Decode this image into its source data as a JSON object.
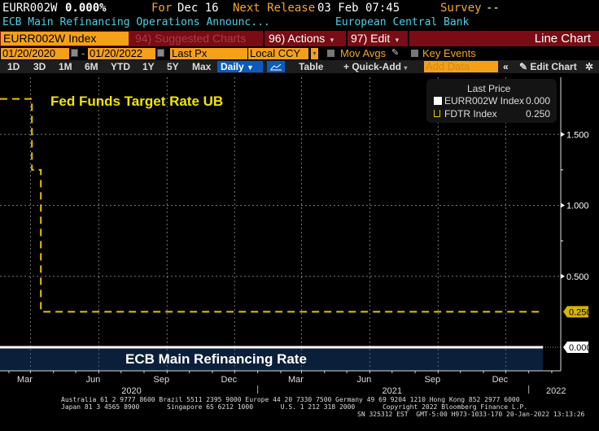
{
  "header": {
    "ticker": "EURR002W",
    "value": "0.000%",
    "for_label": "For",
    "for_date": "Dec 16",
    "next_release_label": "Next Release",
    "next_release_date": "03 Feb 07:45",
    "survey_label": "Survey",
    "survey_value": "--",
    "description": "ECB Main Refinancing Operations Announc...",
    "source": "European Central Bank"
  },
  "toolbar1": {
    "security": "EURR002W Index",
    "suggested_charts": "94) Suggested Charts",
    "actions": "96) Actions",
    "edit": "97) Edit",
    "chart_type": "Line Chart"
  },
  "toolbar2": {
    "start_date": "01/20/2020",
    "dash": "-",
    "end_date": "01/20/2022",
    "field": "Last Px",
    "currency": "Local CCY",
    "mov_avgs": "Mov Avgs",
    "key_events": "Key Events"
  },
  "toolbar3": {
    "ranges": [
      "1D",
      "3D",
      "1M",
      "6M",
      "YTD",
      "1Y",
      "5Y",
      "Max"
    ],
    "periodicity": "Daily",
    "table": "Table",
    "quick_add": "+ Quick-Add",
    "add_data_placeholder": "Add Data",
    "collapse": "«",
    "edit_chart": "Edit Chart"
  },
  "legend": {
    "title": "Last Price",
    "items": [
      {
        "name": "EURR002W Index",
        "value": "0.000",
        "color": "#ffffff"
      },
      {
        "name": "FDTR Index",
        "value": "0.250",
        "color": "#e6c200"
      }
    ]
  },
  "chart_data": {
    "type": "line",
    "title": "",
    "annotations": [
      "Fed Funds Target Rate UB",
      "ECB Main Refinancing Rate"
    ],
    "x_range": [
      "2020-01-20",
      "2022-01-20"
    ],
    "x_ticks": [
      "Mar",
      "Jun",
      "Sep",
      "Dec",
      "Mar",
      "Jun",
      "Sep",
      "Dec"
    ],
    "x_years": [
      "2020",
      "2021",
      "2022"
    ],
    "y_ticks": [
      "1.500",
      "1.000",
      "0.500"
    ],
    "ylim": [
      -0.25,
      1.9
    ],
    "grid": true,
    "legend_position": "top-right",
    "series": [
      {
        "name": "FDTR Index",
        "label": "Fed Funds Target Rate UB",
        "color": "#e6c200",
        "style": "dashed",
        "points": [
          {
            "x": "2020-01-20",
            "y": 1.75
          },
          {
            "x": "2020-03-03",
            "y": 1.75
          },
          {
            "x": "2020-03-03",
            "y": 1.25
          },
          {
            "x": "2020-03-15",
            "y": 1.25
          },
          {
            "x": "2020-03-15",
            "y": 0.25
          },
          {
            "x": "2022-01-20",
            "y": 0.25
          }
        ],
        "last": "0.250"
      },
      {
        "name": "EURR002W Index",
        "label": "ECB Main Refinancing Rate",
        "color": "#ffffff",
        "style": "solid-area",
        "points": [
          {
            "x": "2020-01-20",
            "y": 0.0
          },
          {
            "x": "2022-01-20",
            "y": 0.0
          }
        ],
        "last": "0.000"
      }
    ]
  },
  "footer": {
    "line1": "Australia 61 2 9777 8600 Brazil 5511 2395 9000 Europe 44 20 7330 7500 Germany 49 69 9204 1210 Hong Kong 852 2977 6000",
    "line2": "Japan 81 3 4565 8900       Singapore 65 6212 1000       U.S. 1 212 318 2000       Copyright 2022 Bloomberg Finance L.P.",
    "line3": "SN 325312 EST  GMT-5:00 H973-1033-170 20-Jan-2022 13:13:26"
  }
}
